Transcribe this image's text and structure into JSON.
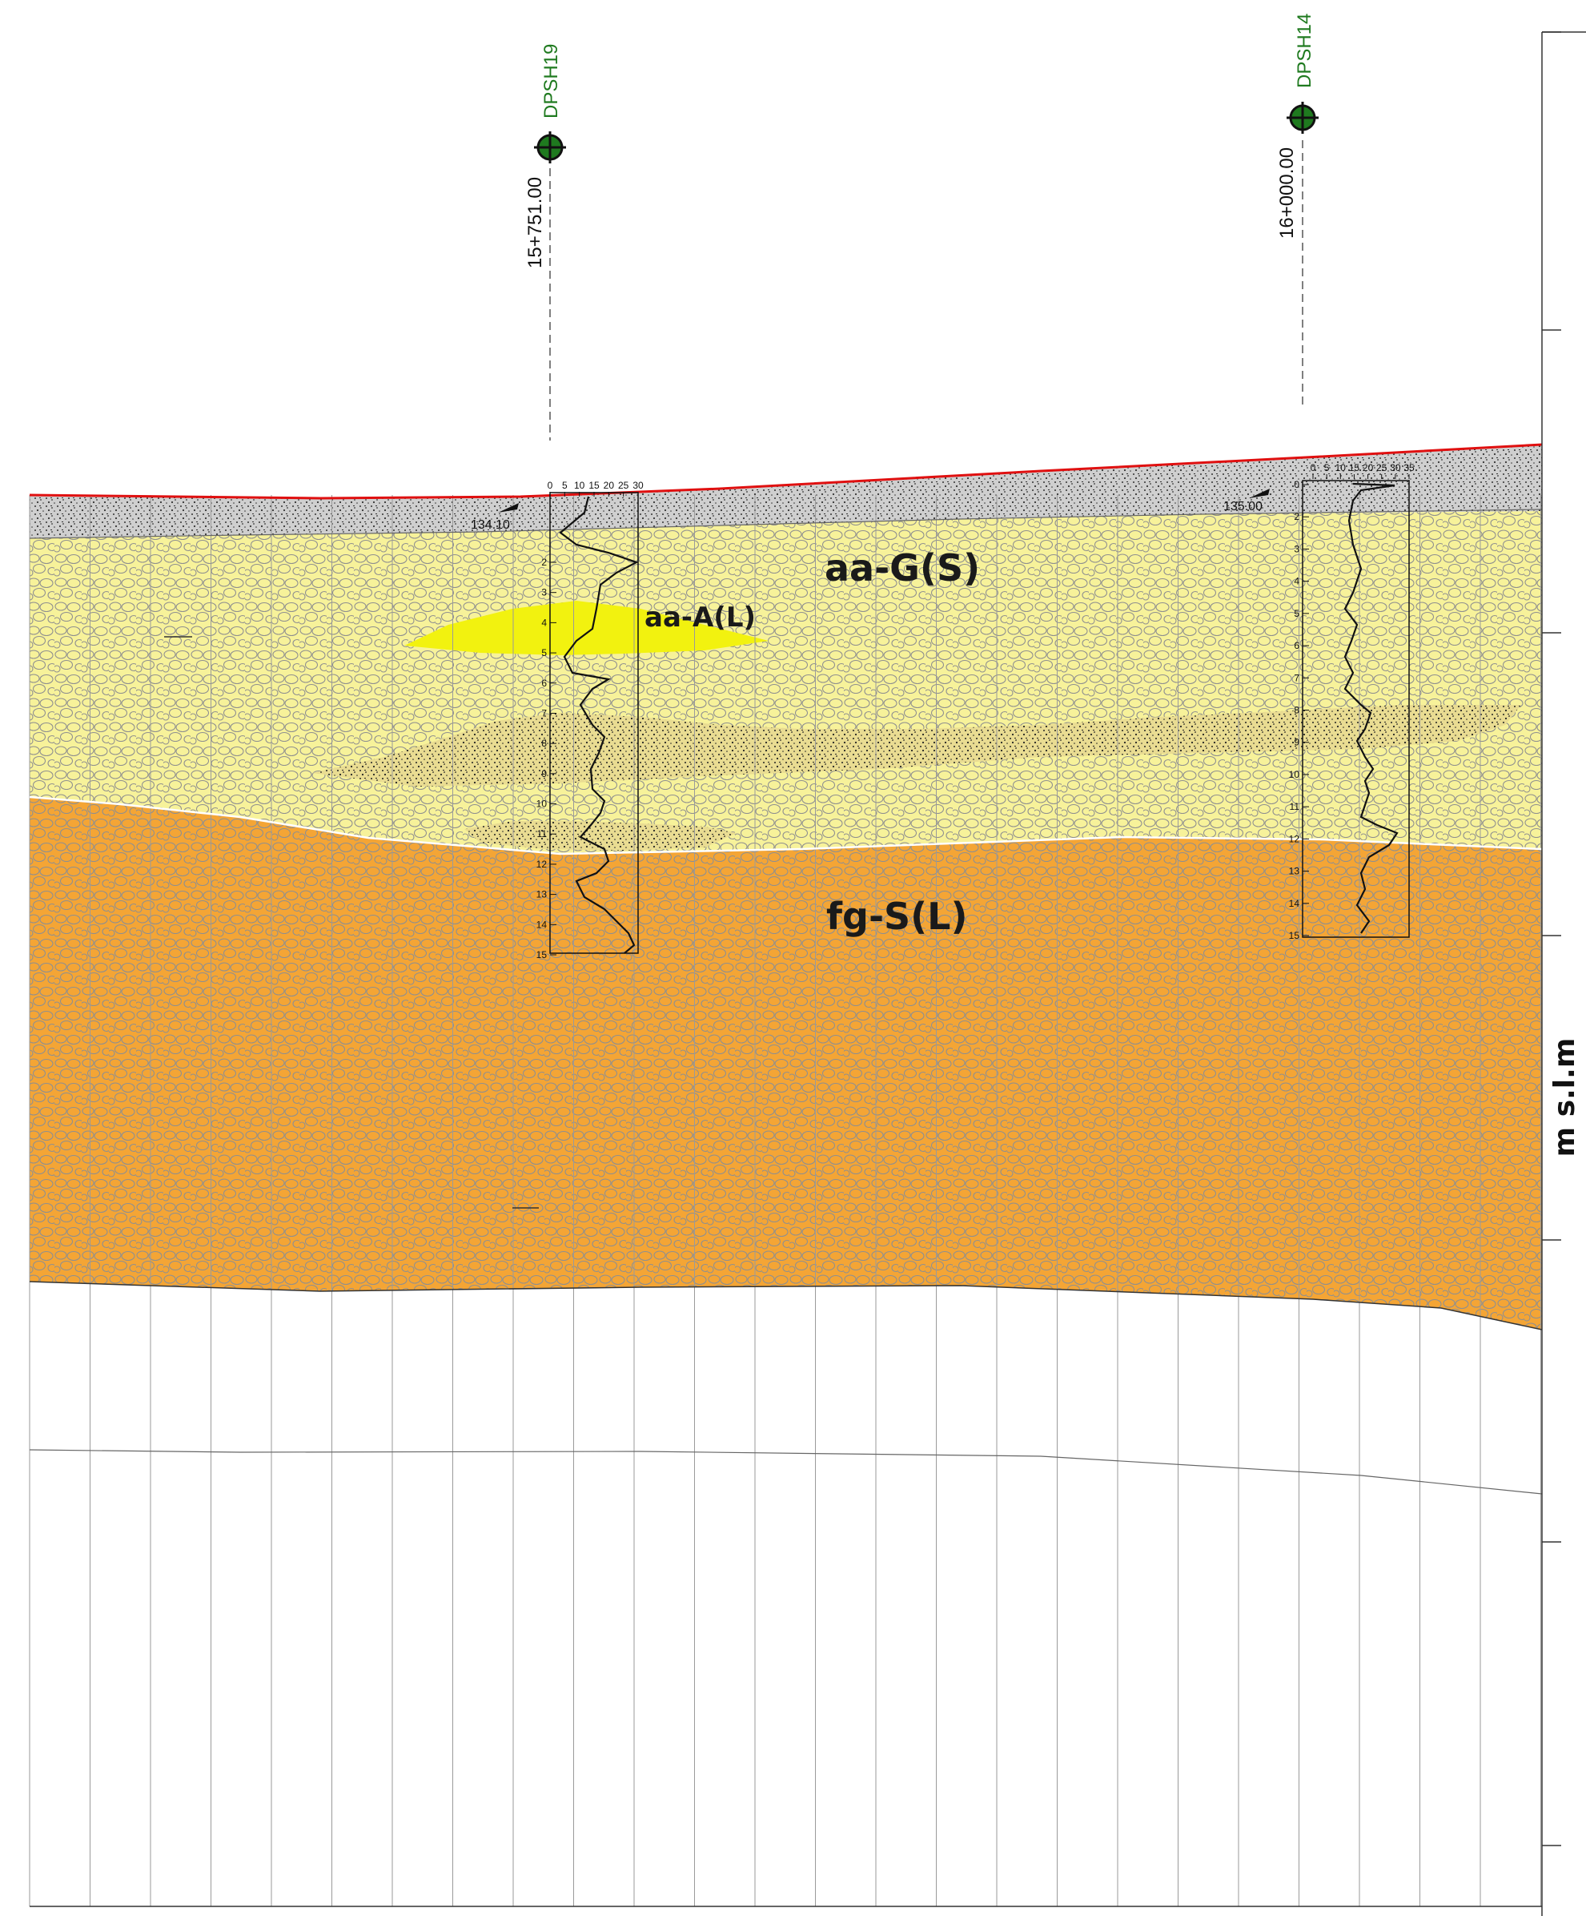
{
  "axis": {
    "unit_label": "m s.l.m"
  },
  "layers": [
    {
      "code": "aa-G(S)",
      "color": "#f7f29a"
    },
    {
      "code": "aa-A(L)",
      "color": "#f2f20f"
    },
    {
      "code": "fg-S(L)",
      "color": "#f4a535"
    }
  ],
  "colors": {
    "ground_line": "#e01010",
    "fill_layer": "#cfcfcf",
    "grid_line": "#9a9a9a",
    "borehole_marker": "#1f7a1f"
  },
  "boreholes": [
    {
      "id": "DPSH19",
      "chainage": "15+751.00",
      "elevation": "134.10",
      "scale_ticks": [
        "0",
        "5",
        "10",
        "15",
        "20",
        "25",
        "30"
      ],
      "depth_ticks": [
        "2",
        "3",
        "4",
        "5",
        "6",
        "7",
        "8",
        "9",
        "10",
        "11",
        "12",
        "13",
        "14",
        "15"
      ]
    },
    {
      "id": "DPSH14",
      "chainage": "16+000.00",
      "elevation": "135.00",
      "scale_ticks": [
        "0",
        "5",
        "10",
        "15",
        "20",
        "25",
        "30",
        "35"
      ],
      "depth_ticks": [
        "0",
        "2",
        "3",
        "4",
        "5",
        "6",
        "7",
        "8",
        "9",
        "10",
        "11",
        "12",
        "13",
        "14",
        "15"
      ]
    }
  ]
}
